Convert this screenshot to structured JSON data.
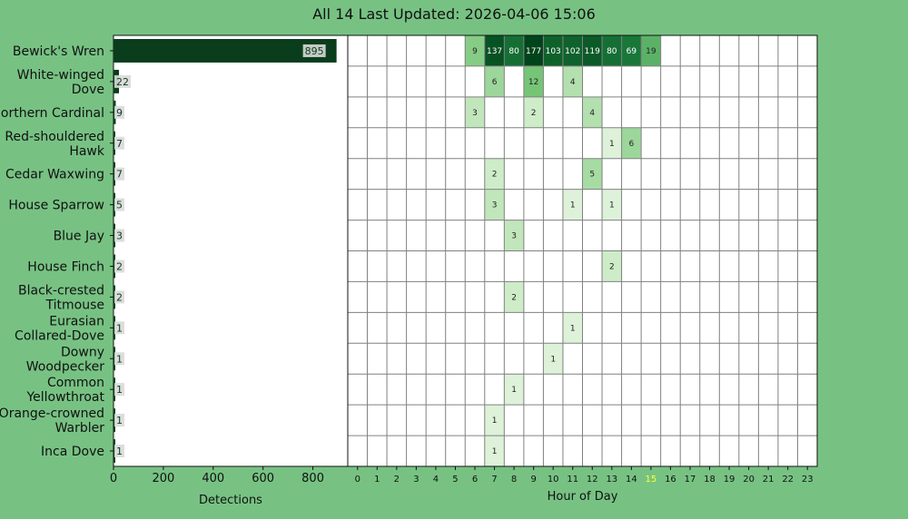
{
  "title": "All 14 Last Updated: 2026-04-06 15:06",
  "colors": {
    "background": "#77c283",
    "bar": "#0a3d1c",
    "highlight_hour": "#ffff33"
  },
  "chart_data": [
    {
      "type": "bar",
      "orientation": "horizontal",
      "categories": [
        "Bewick's Wren",
        "White-winged Dove",
        "Northern Cardinal",
        "Red-shouldered Hawk",
        "Cedar Waxwing",
        "House Sparrow",
        "Blue Jay",
        "House Finch",
        "Black-crested Titmouse",
        "Eurasian Collared-Dove",
        "Downy Woodpecker",
        "Common Yellowthroat",
        "Orange-crowned Warbler",
        "Inca Dove"
      ],
      "category_lines": [
        [
          "Bewick's Wren"
        ],
        [
          "White-winged",
          "Dove"
        ],
        [
          "Northern Cardinal"
        ],
        [
          "Red-shouldered",
          "Hawk"
        ],
        [
          "Cedar Waxwing"
        ],
        [
          "House Sparrow"
        ],
        [
          "Blue Jay"
        ],
        [
          "House Finch"
        ],
        [
          "Black-crested",
          "Titmouse"
        ],
        [
          "Eurasian",
          "Collared-Dove"
        ],
        [
          "Downy",
          "Woodpecker"
        ],
        [
          "Common",
          "Yellowthroat"
        ],
        [
          "Orange-crowned",
          "Warbler"
        ],
        [
          "Inca Dove"
        ]
      ],
      "values": [
        895,
        22,
        9,
        7,
        7,
        5,
        3,
        2,
        2,
        1,
        1,
        1,
        1,
        1
      ],
      "xlabel": "Detections",
      "xticks": [
        0,
        200,
        400,
        600,
        800
      ],
      "xlim": [
        0,
        940
      ]
    },
    {
      "type": "heatmap",
      "xlabel": "Hour of Day",
      "x": [
        0,
        1,
        2,
        3,
        4,
        5,
        6,
        7,
        8,
        9,
        10,
        11,
        12,
        13,
        14,
        15,
        16,
        17,
        18,
        19,
        20,
        21,
        22,
        23
      ],
      "highlight_x": 15,
      "cells": [
        {
          "row": 0,
          "hour": 6,
          "value": 9
        },
        {
          "row": 0,
          "hour": 7,
          "value": 137
        },
        {
          "row": 0,
          "hour": 8,
          "value": 80
        },
        {
          "row": 0,
          "hour": 9,
          "value": 177
        },
        {
          "row": 0,
          "hour": 10,
          "value": 103
        },
        {
          "row": 0,
          "hour": 11,
          "value": 102
        },
        {
          "row": 0,
          "hour": 12,
          "value": 119
        },
        {
          "row": 0,
          "hour": 13,
          "value": 80
        },
        {
          "row": 0,
          "hour": 14,
          "value": 69
        },
        {
          "row": 0,
          "hour": 15,
          "value": 19
        },
        {
          "row": 1,
          "hour": 7,
          "value": 6
        },
        {
          "row": 1,
          "hour": 9,
          "value": 12
        },
        {
          "row": 1,
          "hour": 11,
          "value": 4
        },
        {
          "row": 2,
          "hour": 6,
          "value": 3
        },
        {
          "row": 2,
          "hour": 9,
          "value": 2
        },
        {
          "row": 2,
          "hour": 12,
          "value": 4
        },
        {
          "row": 3,
          "hour": 13,
          "value": 1
        },
        {
          "row": 3,
          "hour": 14,
          "value": 6
        },
        {
          "row": 4,
          "hour": 7,
          "value": 2
        },
        {
          "row": 4,
          "hour": 12,
          "value": 5
        },
        {
          "row": 5,
          "hour": 7,
          "value": 3
        },
        {
          "row": 5,
          "hour": 11,
          "value": 1
        },
        {
          "row": 5,
          "hour": 13,
          "value": 1
        },
        {
          "row": 6,
          "hour": 8,
          "value": 3
        },
        {
          "row": 7,
          "hour": 13,
          "value": 2
        },
        {
          "row": 8,
          "hour": 8,
          "value": 2
        },
        {
          "row": 9,
          "hour": 11,
          "value": 1
        },
        {
          "row": 10,
          "hour": 10,
          "value": 1
        },
        {
          "row": 11,
          "hour": 8,
          "value": 1
        },
        {
          "row": 12,
          "hour": 7,
          "value": 1
        },
        {
          "row": 13,
          "hour": 7,
          "value": 1
        }
      ]
    }
  ]
}
